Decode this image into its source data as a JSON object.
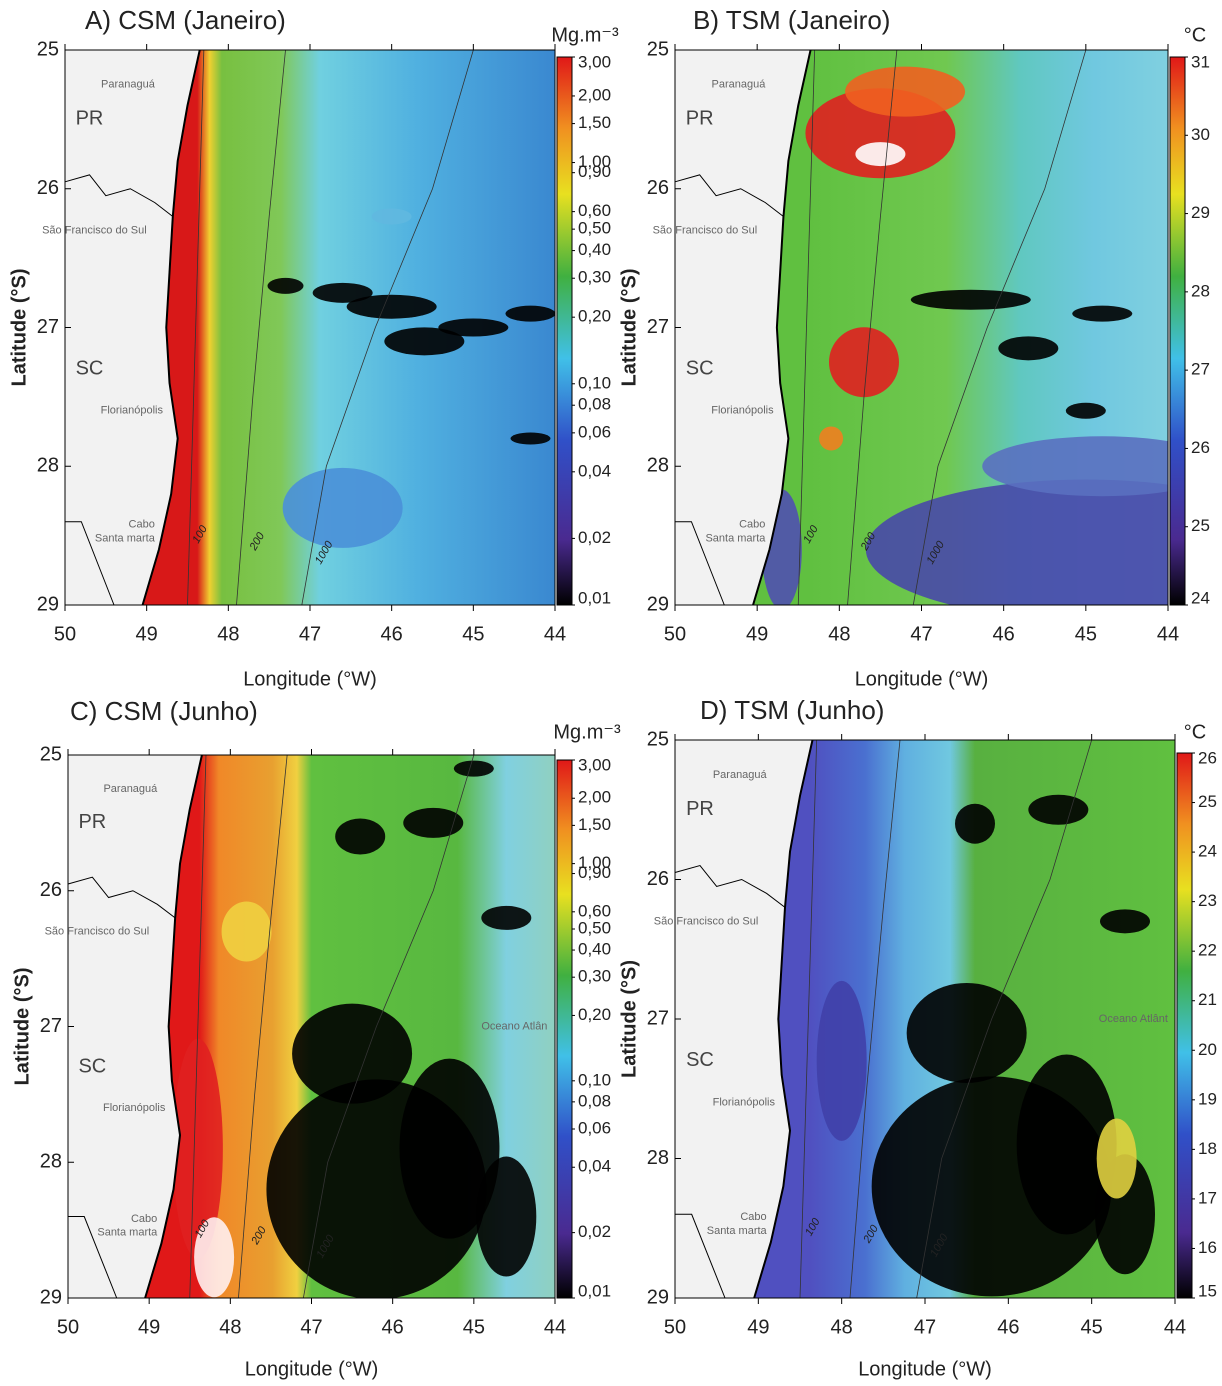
{
  "panels": [
    {
      "title": "A) CSM (Janeiro)",
      "unit": "Mg.m⁻³",
      "colorbar": {
        "scale": "log",
        "lim": [
          0.01,
          3
        ],
        "ticks": [
          {
            "value": 3,
            "label": "3,00"
          },
          {
            "value": 2,
            "label": "2,00"
          },
          {
            "value": 1.5,
            "label": "1,50"
          },
          {
            "value": 1,
            "label": "1,00"
          },
          {
            "value": 0.9,
            "label": "0,90"
          },
          {
            "value": 0.6,
            "label": "0,60"
          },
          {
            "value": 0.5,
            "label": "0,50"
          },
          {
            "value": 0.4,
            "label": "0,40"
          },
          {
            "value": 0.3,
            "label": "0,30"
          },
          {
            "value": 0.2,
            "label": "0,20"
          },
          {
            "value": 0.1,
            "label": "0,10"
          },
          {
            "value": 0.08,
            "label": "0,08"
          },
          {
            "value": 0.06,
            "label": "0,06"
          },
          {
            "value": 0.04,
            "label": "0,04"
          },
          {
            "value": 0.02,
            "label": "0,02"
          },
          {
            "value": 0.01,
            "label": "0,01"
          }
        ]
      },
      "lat_lim": [
        25,
        29
      ],
      "lat_ticks": [
        25,
        26,
        27,
        28,
        29
      ],
      "lon_lim": [
        50,
        44
      ],
      "lon_ticks": [
        50,
        49,
        48,
        47,
        46,
        45,
        44
      ],
      "x_label": "Longitude (°W)",
      "y_label": "Latitude (°S)",
      "places": [
        "Paranaguá",
        "PR",
        "São Francisco do Sul",
        "SC",
        "Florianópolis",
        "Cabo",
        "Santa marta"
      ],
      "isobaths": [
        "100",
        "200",
        "1000"
      ]
    },
    {
      "title": "B) TSM (Janeiro)",
      "unit": "°C",
      "colorbar": {
        "scale": "linear",
        "lim": [
          24,
          31
        ],
        "ticks": [
          31,
          30,
          29,
          28,
          27,
          26,
          25,
          24
        ]
      },
      "lat_lim": [
        25,
        29
      ],
      "lat_ticks": [
        25,
        26,
        27,
        28,
        29
      ],
      "lon_lim": [
        50,
        44
      ],
      "lon_ticks": [
        50,
        49,
        48,
        47,
        46,
        45,
        44
      ],
      "x_label": "Longitude (°W)",
      "y_label": "Latitude (°S)",
      "places": [
        "Paranaguá",
        "PR",
        "São Francisco do Sul",
        "SC",
        "Florianópolis",
        "Cabo",
        "Santa marta"
      ],
      "isobaths": [
        "100",
        "200",
        "1000"
      ]
    },
    {
      "title": "C) CSM (Junho)",
      "unit": "Mg.m⁻³",
      "colorbar": {
        "scale": "log",
        "lim": [
          0.01,
          3
        ],
        "ticks": [
          {
            "value": 3,
            "label": "3,00"
          },
          {
            "value": 2,
            "label": "2,00"
          },
          {
            "value": 1.5,
            "label": "1,50"
          },
          {
            "value": 1,
            "label": "1,00"
          },
          {
            "value": 0.9,
            "label": "0,90"
          },
          {
            "value": 0.6,
            "label": "0,60"
          },
          {
            "value": 0.5,
            "label": "0,50"
          },
          {
            "value": 0.4,
            "label": "0,40"
          },
          {
            "value": 0.3,
            "label": "0,30"
          },
          {
            "value": 0.2,
            "label": "0,20"
          },
          {
            "value": 0.1,
            "label": "0,10"
          },
          {
            "value": 0.08,
            "label": "0,08"
          },
          {
            "value": 0.06,
            "label": "0,06"
          },
          {
            "value": 0.04,
            "label": "0,04"
          },
          {
            "value": 0.02,
            "label": "0,02"
          },
          {
            "value": 0.01,
            "label": "0,01"
          }
        ]
      },
      "lat_lim": [
        25,
        29
      ],
      "lat_ticks": [
        25,
        26,
        27,
        28,
        29
      ],
      "lon_lim": [
        50,
        44
      ],
      "lon_ticks": [
        50,
        49,
        48,
        47,
        46,
        45,
        44
      ],
      "x_label": "Longitude (°W)",
      "y_label": "Latitude (°S)",
      "places": [
        "Paranaguá",
        "PR",
        "São Francisco do Sul",
        "SC",
        "Florianópolis",
        "Cabo",
        "Santa marta",
        "Oceano Atlân"
      ],
      "isobaths": [
        "100",
        "200",
        "1000"
      ]
    },
    {
      "title": "D) TSM (Junho)",
      "unit": "°C",
      "colorbar": {
        "scale": "linear",
        "lim": [
          15,
          26
        ],
        "ticks": [
          26,
          25,
          24,
          23,
          22,
          21,
          20,
          19,
          18,
          17,
          16,
          15
        ]
      },
      "lat_lim": [
        25,
        29
      ],
      "lat_ticks": [
        25,
        26,
        27,
        28,
        29
      ],
      "lon_lim": [
        50,
        44
      ],
      "lon_ticks": [
        50,
        49,
        48,
        47,
        46,
        45,
        44
      ],
      "x_label": "Longitude (°W)",
      "y_label": "Latitude (°S)",
      "places": [
        "Paranaguá",
        "PR",
        "São Francisco do Sul",
        "SC",
        "Florianópolis",
        "Cabo",
        "Santa marta",
        "Oceano Atlânt"
      ],
      "isobaths": [
        "100",
        "200",
        "1000"
      ]
    }
  ]
}
